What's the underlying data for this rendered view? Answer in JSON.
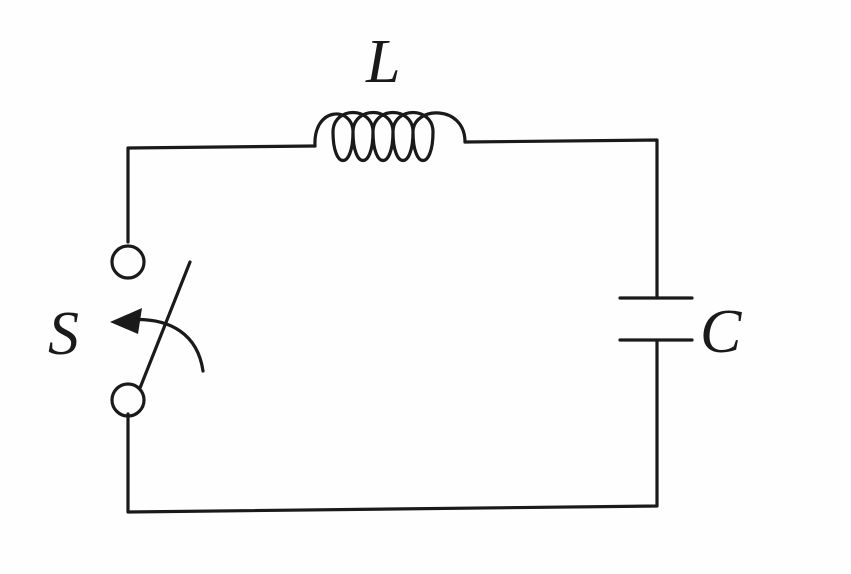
{
  "diagram": {
    "type": "LC circuit",
    "labels": {
      "inductor": "L",
      "capacitor": "C",
      "switch": "S"
    },
    "colors": {
      "ink": "#1a1a1a",
      "background": "#fefefe"
    }
  }
}
